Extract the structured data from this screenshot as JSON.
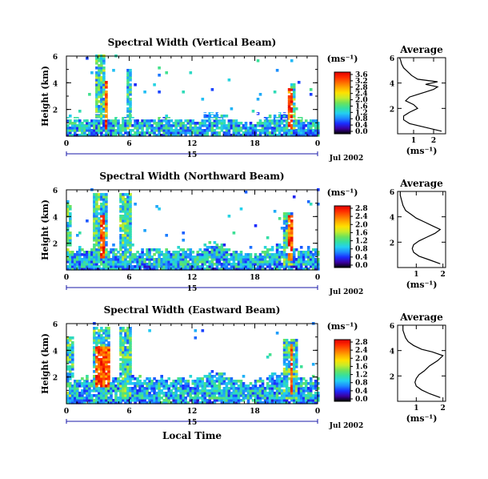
{
  "colors": {
    "colorbar": [
      "#000000",
      "#3a00a0",
      "#1a2cff",
      "#1d8cff",
      "#23d0f0",
      "#35e0a0",
      "#6ee35a",
      "#c8ec2a",
      "#ffe000",
      "#ffaa00",
      "#ff6a00",
      "#ff2a00",
      "#e00000"
    ],
    "accent_axis": "#1a1aaa"
  },
  "labels": {
    "ylabel": "Height (km)",
    "xlabel": "Local Time",
    "date": "Jul 2002",
    "day": "15",
    "unit": "(ms⁻¹)",
    "avg_title": "Average",
    "avg_xunit": "(ms⁻¹)"
  },
  "chart_data": [
    {
      "type": "heatmap",
      "title": "Spectral Width (Vertical Beam)",
      "xlabel": "",
      "ylabel": "Height (km)",
      "x_ticks": [
        "0",
        "6",
        "12",
        "18",
        "0"
      ],
      "y_ticks": [
        "2",
        "4",
        "6"
      ],
      "xlim": [
        0,
        24
      ],
      "ylim": [
        0,
        6
      ],
      "colorbar": {
        "label": "(ms⁻¹)",
        "ticks": [
          "0.0",
          "0.4",
          "0.8",
          "1.2",
          "1.6",
          "2.0",
          "2.4",
          "2.8",
          "3.2",
          "3.6"
        ],
        "range": [
          0,
          3.8
        ]
      },
      "features": {
        "boundary_layer_top_km": 1.2,
        "columns_hours": [
          [
            2.7,
            3.6,
            1.0,
            6.0
          ],
          [
            5.6,
            6.0,
            0.2,
            5.0
          ],
          [
            21.2,
            21.7,
            0.3,
            3.8
          ]
        ],
        "high_regions_hours": [
          [
            3.5,
            3.9,
            0.5,
            4.0
          ],
          [
            21.0,
            21.6,
            0.4,
            3.6
          ]
        ]
      }
    },
    {
      "type": "heatmap",
      "title": "Spectral Width (Northward Beam)",
      "xlabel": "",
      "ylabel": "Height (km)",
      "x_ticks": [
        "0",
        "6",
        "12",
        "18",
        "0"
      ],
      "y_ticks": [
        "2",
        "4",
        "6"
      ],
      "xlim": [
        0,
        24
      ],
      "ylim": [
        0,
        6
      ],
      "colorbar": {
        "label": "(ms⁻¹)",
        "ticks": [
          "0.0",
          "0.4",
          "0.8",
          "1.2",
          "1.6",
          "2.0",
          "2.4",
          "2.8"
        ],
        "range": [
          0,
          3.0
        ]
      },
      "features": {
        "boundary_layer_top_km": 1.4,
        "columns_hours": [
          [
            0,
            0.4,
            0.6,
            5.0
          ],
          [
            2.4,
            3.8,
            1.0,
            5.6
          ],
          [
            5.0,
            6.0,
            0.4,
            5.6
          ],
          [
            20.5,
            21.6,
            0.3,
            4.3
          ]
        ],
        "high_regions_hours": [
          [
            3.0,
            3.6,
            0.8,
            4.0
          ],
          [
            21.0,
            21.5,
            0.6,
            4.0
          ]
        ]
      }
    },
    {
      "type": "heatmap",
      "title": "Spectral Width (Eastward Beam)",
      "xlabel": "Local Time",
      "ylabel": "Height (km)",
      "x_ticks": [
        "0",
        "6",
        "12",
        "18",
        "0"
      ],
      "y_ticks": [
        "2",
        "4",
        "6"
      ],
      "xlim": [
        0,
        24
      ],
      "ylim": [
        0,
        6
      ],
      "colorbar": {
        "label": "(ms⁻¹)",
        "ticks": [
          "0.0",
          "0.4",
          "0.8",
          "1.2",
          "1.6",
          "2.0",
          "2.4",
          "2.8"
        ],
        "range": [
          0,
          3.0
        ]
      },
      "features": {
        "boundary_layer_top_km": 1.8,
        "columns_hours": [
          [
            0,
            0.6,
            0.4,
            5.0
          ],
          [
            2.4,
            4.0,
            1.0,
            5.6
          ],
          [
            5.0,
            6.0,
            0.4,
            5.6
          ],
          [
            20.5,
            22.0,
            0.3,
            4.8
          ]
        ],
        "high_regions_hours": [
          [
            2.6,
            4.0,
            1.2,
            4.2
          ],
          [
            21.2,
            21.6,
            0.6,
            4.4
          ]
        ]
      }
    },
    {
      "type": "line",
      "title": "Average",
      "xlabel": "(ms⁻¹)",
      "ylabel": "",
      "x_ticks": [
        "1",
        "2"
      ],
      "y_ticks": [
        "2",
        "4",
        "6"
      ],
      "xlim": [
        0.2,
        2.6
      ],
      "ylim": [
        0,
        6
      ],
      "series": [
        {
          "x": [
            2.4,
            1.6,
            0.8,
            0.5,
            0.5,
            0.8,
            1.2,
            1.0,
            0.6,
            0.8,
            1.2,
            1.6,
            2.0,
            2.2,
            1.6,
            2.2,
            1.2,
            0.9,
            0.7,
            0.5,
            0.4,
            0.35,
            0.3
          ],
          "y": [
            0.2,
            0.5,
            0.8,
            1.1,
            1.4,
            1.7,
            2.0,
            2.3,
            2.6,
            2.9,
            3.1,
            3.3,
            3.5,
            3.7,
            3.9,
            4.1,
            4.3,
            4.6,
            4.9,
            5.2,
            5.5,
            5.8,
            6.0
          ]
        }
      ]
    },
    {
      "type": "line",
      "title": "Average",
      "xlabel": "(ms⁻¹)",
      "ylabel": "",
      "x_ticks": [
        "1",
        "2"
      ],
      "y_ticks": [
        "2",
        "4",
        "6"
      ],
      "xlim": [
        0.3,
        2.1
      ],
      "ylim": [
        0,
        6
      ],
      "series": [
        {
          "x": [
            1.9,
            1.5,
            1.1,
            0.9,
            0.85,
            0.9,
            1.1,
            1.4,
            1.7,
            1.9,
            1.6,
            1.3,
            1.0,
            0.8,
            0.6,
            0.5,
            0.45,
            0.4,
            0.4
          ],
          "y": [
            0.3,
            0.6,
            0.9,
            1.2,
            1.5,
            1.8,
            2.1,
            2.4,
            2.7,
            3.0,
            3.3,
            3.6,
            3.9,
            4.2,
            4.5,
            4.9,
            5.3,
            5.7,
            6.0
          ]
        }
      ]
    },
    {
      "type": "line",
      "title": "Average",
      "xlabel": "(ms⁻¹)",
      "ylabel": "",
      "x_ticks": [
        "1",
        "2"
      ],
      "y_ticks": [
        "2",
        "4",
        "6"
      ],
      "xlim": [
        0.3,
        2.1
      ],
      "ylim": [
        0,
        6
      ],
      "series": [
        {
          "x": [
            1.9,
            1.5,
            1.2,
            1.0,
            0.95,
            1.0,
            1.1,
            1.3,
            1.5,
            1.8,
            2.0,
            1.6,
            1.2,
            0.9,
            0.7,
            0.6,
            0.55,
            0.5,
            0.5
          ],
          "y": [
            0.3,
            0.6,
            0.9,
            1.2,
            1.5,
            1.8,
            2.1,
            2.4,
            2.8,
            3.2,
            3.6,
            3.9,
            4.1,
            4.4,
            4.7,
            5.0,
            5.3,
            5.6,
            6.0
          ]
        }
      ]
    }
  ]
}
